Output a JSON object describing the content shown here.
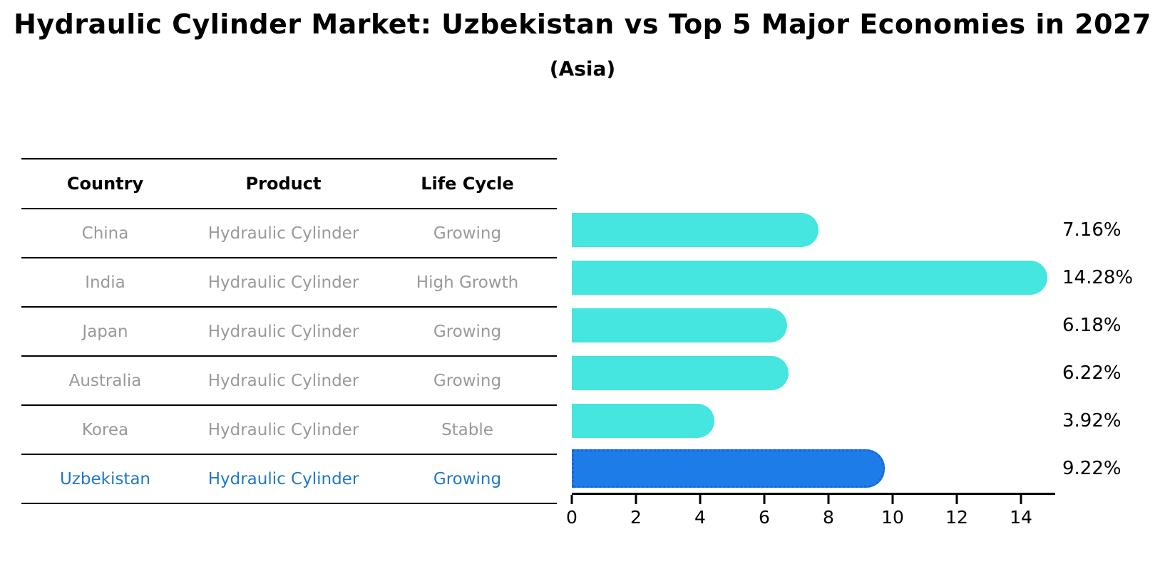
{
  "title": "Hydraulic Cylinder Market: Uzbekistan vs Top 5 Major Economies in 2027",
  "subtitle": "(Asia)",
  "table": {
    "headers": [
      "Country",
      "Product",
      "Life Cycle"
    ]
  },
  "chart_data": {
    "type": "bar",
    "orientation": "horizontal",
    "title": "Hydraulic Cylinder Market: Uzbekistan vs Top 5 Major Economies in 2027",
    "subtitle": "(Asia)",
    "grid": false,
    "xlim": [
      0,
      15
    ],
    "xticks": [
      "0",
      "2",
      "4",
      "6",
      "8",
      "10",
      "12",
      "14"
    ],
    "categories": [
      "China",
      "India",
      "Japan",
      "Australia",
      "Korea",
      "Uzbekistan"
    ],
    "values": [
      7.16,
      14.28,
      6.18,
      6.22,
      3.92,
      9.22
    ],
    "rows": [
      {
        "country": "China",
        "product": "Hydraulic Cylinder",
        "life_cycle": "Growing",
        "value": 7.16,
        "value_label": "7.16%",
        "highlight": false
      },
      {
        "country": "India",
        "product": "Hydraulic Cylinder",
        "life_cycle": "High Growth",
        "value": 14.28,
        "value_label": "14.28%",
        "highlight": false
      },
      {
        "country": "Japan",
        "product": "Hydraulic Cylinder",
        "life_cycle": "Growing",
        "value": 6.18,
        "value_label": "6.18%",
        "highlight": false
      },
      {
        "country": "Australia",
        "product": "Hydraulic Cylinder",
        "life_cycle": "Growing",
        "value": 6.22,
        "value_label": "6.22%",
        "highlight": false
      },
      {
        "country": "Korea",
        "product": "Hydraulic Cylinder",
        "life_cycle": "Stable",
        "value": 3.92,
        "value_label": "3.92%",
        "highlight": false
      },
      {
        "country": "Uzbekistan",
        "product": "Hydraulic Cylinder",
        "life_cycle": "Growing",
        "value": 9.22,
        "value_label": "9.22%",
        "highlight": true
      }
    ]
  },
  "colors": {
    "bar_default": "#45e5e0",
    "bar_highlight": "#1e7ce8",
    "bar_highlight_border": "#1566d2",
    "highlight_text": "#1f78c8",
    "row_text": "#999999",
    "axis": "#000000"
  }
}
